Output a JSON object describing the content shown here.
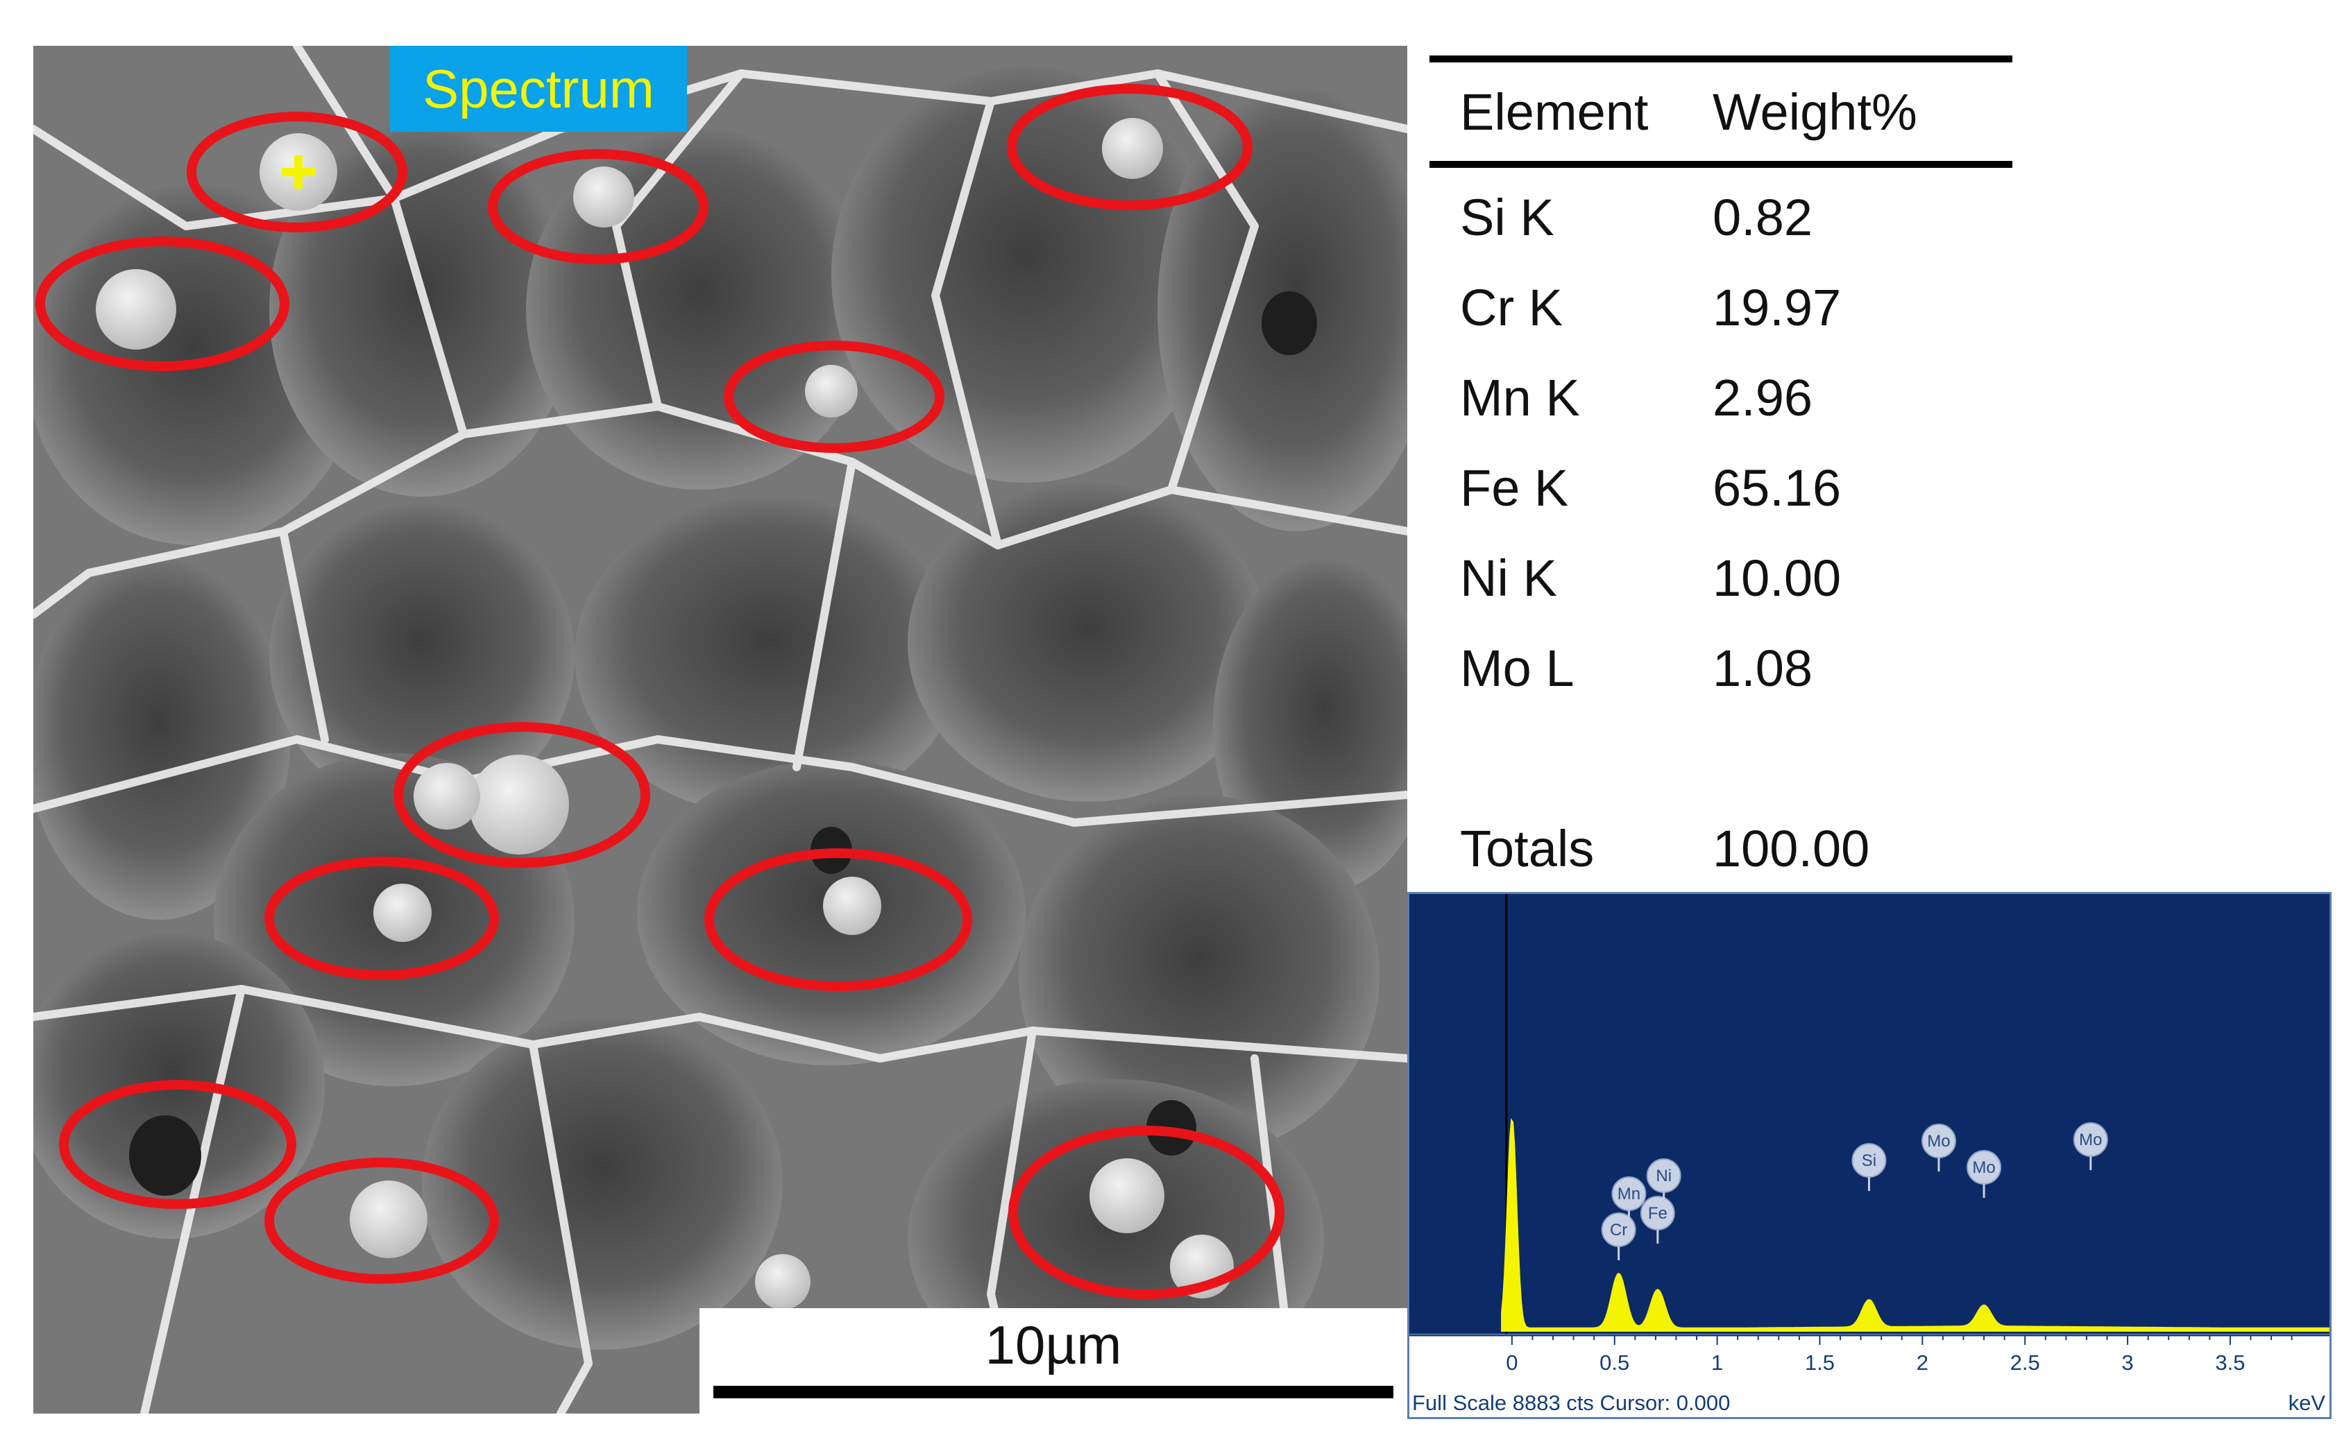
{
  "micrograph": {
    "tag": "Spectrum",
    "scale_bar": "10µm"
  },
  "table": {
    "headers": [
      "Element",
      "Weight%"
    ],
    "rows": [
      {
        "element": "Si K",
        "weight": "0.82"
      },
      {
        "element": "Cr K",
        "weight": "19.97"
      },
      {
        "element": "Mn K",
        "weight": "2.96"
      },
      {
        "element": "Fe K",
        "weight": "65.16"
      },
      {
        "element": "Ni K",
        "weight": "10.00"
      },
      {
        "element": "Mo L",
        "weight": "1.08"
      }
    ],
    "totals_label": "Totals",
    "totals_value": "100.00"
  },
  "spectrum": {
    "footer": "Full Scale 8883 cts Cursor: 0.000",
    "unit": "keV",
    "x_ticks": [
      "0",
      "0.5",
      "1",
      "1.5",
      "2",
      "2.5",
      "3",
      "3.5"
    ],
    "x_range": [
      -0.5,
      3.95
    ],
    "full_scale": 8883,
    "peak_labels": [
      {
        "label": "Cr",
        "kev": 0.52
      },
      {
        "label": "Fe",
        "kev": 0.71
      },
      {
        "label": "Mn",
        "kev": 0.57
      },
      {
        "label": "Ni",
        "kev": 0.74
      },
      {
        "label": "Si",
        "kev": 1.74
      },
      {
        "label": "Mo",
        "kev": 2.08
      },
      {
        "label": "Mo",
        "kev": 2.3
      },
      {
        "label": "Mo",
        "kev": 2.82
      }
    ],
    "peaks": [
      {
        "kev": 0.0,
        "counts": 4300
      },
      {
        "kev": 0.52,
        "counts": 1120
      },
      {
        "kev": 0.71,
        "counts": 790
      },
      {
        "kev": 1.74,
        "counts": 560
      },
      {
        "kev": 2.3,
        "counts": 430
      }
    ],
    "colors": {
      "background": "#0c2a66",
      "trace": "#f4f400"
    }
  }
}
